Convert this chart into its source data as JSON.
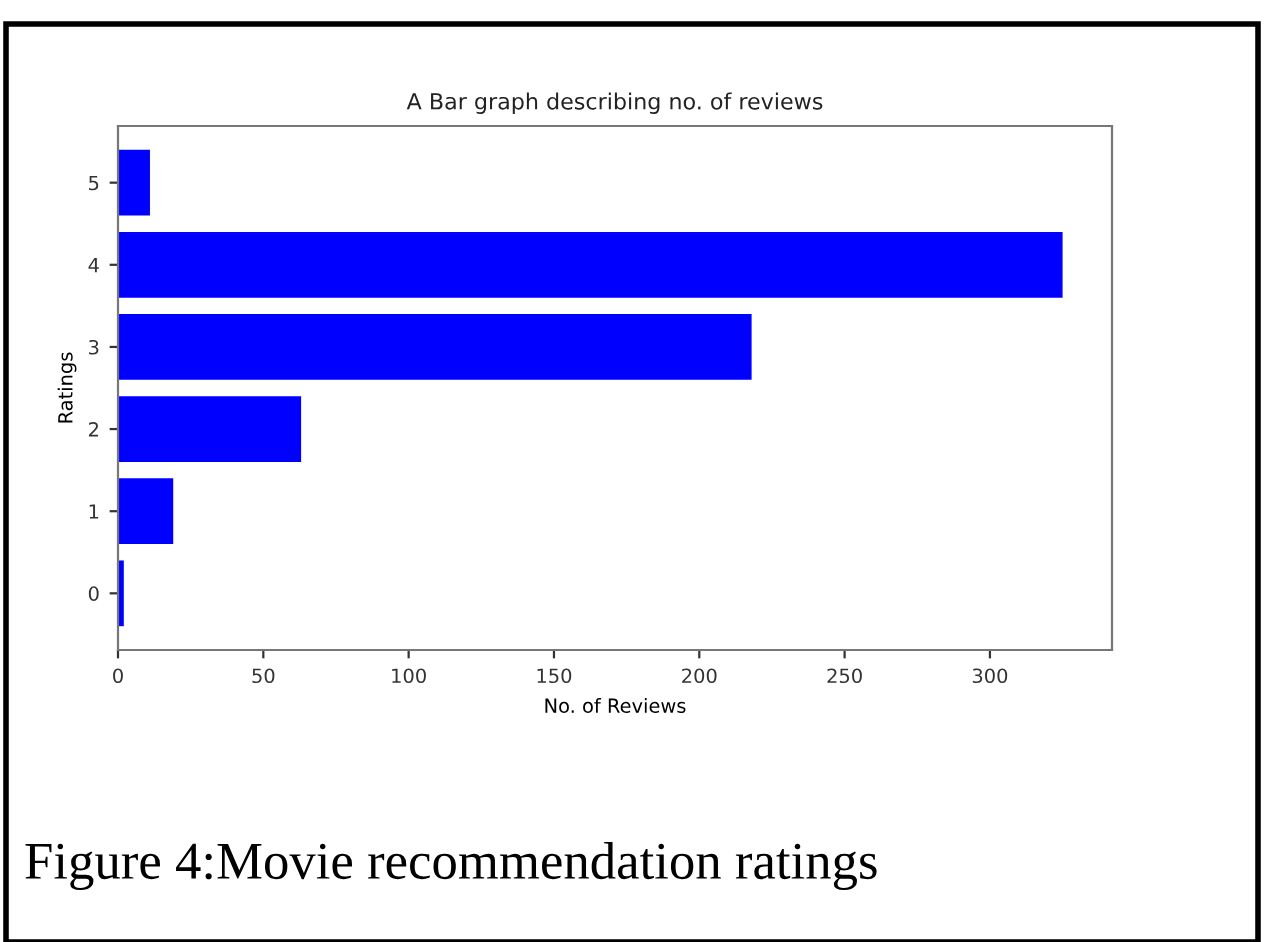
{
  "chart_data": {
    "type": "bar",
    "orientation": "horizontal",
    "title": "A Bar graph describing no. of reviews",
    "xlabel": "No. of Reviews",
    "ylabel": "Ratings",
    "categories": [
      "5",
      "4",
      "3",
      "2",
      "1",
      "0"
    ],
    "values": [
      11,
      325,
      218,
      63,
      19,
      2
    ],
    "color": "#0000ff",
    "xlim": [
      0,
      342
    ],
    "xticks": [
      0,
      50,
      100,
      150,
      200,
      250,
      300
    ],
    "grid": false,
    "legend": false,
    "annotations": [
      "Figure 4:Movie recommendation ratings"
    ]
  }
}
